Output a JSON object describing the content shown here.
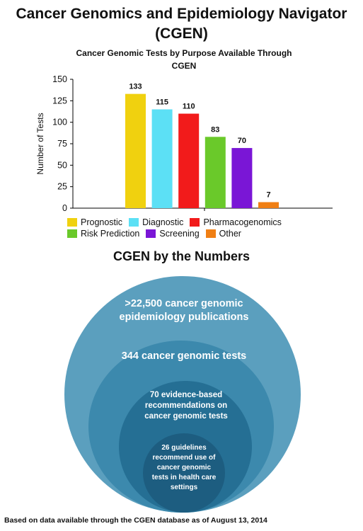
{
  "page": {
    "title": "Cancer Genomics and Epidemiology Navigator (CGEN)",
    "section_title": "CGEN by the Numbers",
    "footnote": "Based on data available through the CGEN database as of August 13, 2014"
  },
  "chart_data": {
    "type": "bar",
    "title": "Cancer Genomic Tests by Purpose Available Through CGEN",
    "xlabel": "",
    "ylabel": "Number of Tests",
    "ylim": [
      0,
      150
    ],
    "yticks": [
      0,
      25,
      50,
      75,
      100,
      125,
      150
    ],
    "categories": [
      "Prognostic",
      "Diagnostic",
      "Pharmacogenomics",
      "Risk Prediction",
      "Screening",
      "Other"
    ],
    "values": [
      133,
      115,
      110,
      83,
      70,
      7
    ],
    "colors": [
      "#f0d10f",
      "#5ce0f5",
      "#f21b1b",
      "#6ac92a",
      "#7a16d6",
      "#f07f14"
    ],
    "legend_position": "bottom"
  },
  "circles": [
    {
      "text": ">22,500 cancer genomic epidemiology publications",
      "color": "#5b9fbe"
    },
    {
      "text": "344 cancer genomic tests",
      "color": "#3c89ad"
    },
    {
      "text": "70 evidence-based recommendations on cancer genomic tests",
      "color": "#256f94"
    },
    {
      "text": "26 guidelines recommend use of cancer genomic tests in health care settings",
      "color": "#1d5d80"
    }
  ]
}
